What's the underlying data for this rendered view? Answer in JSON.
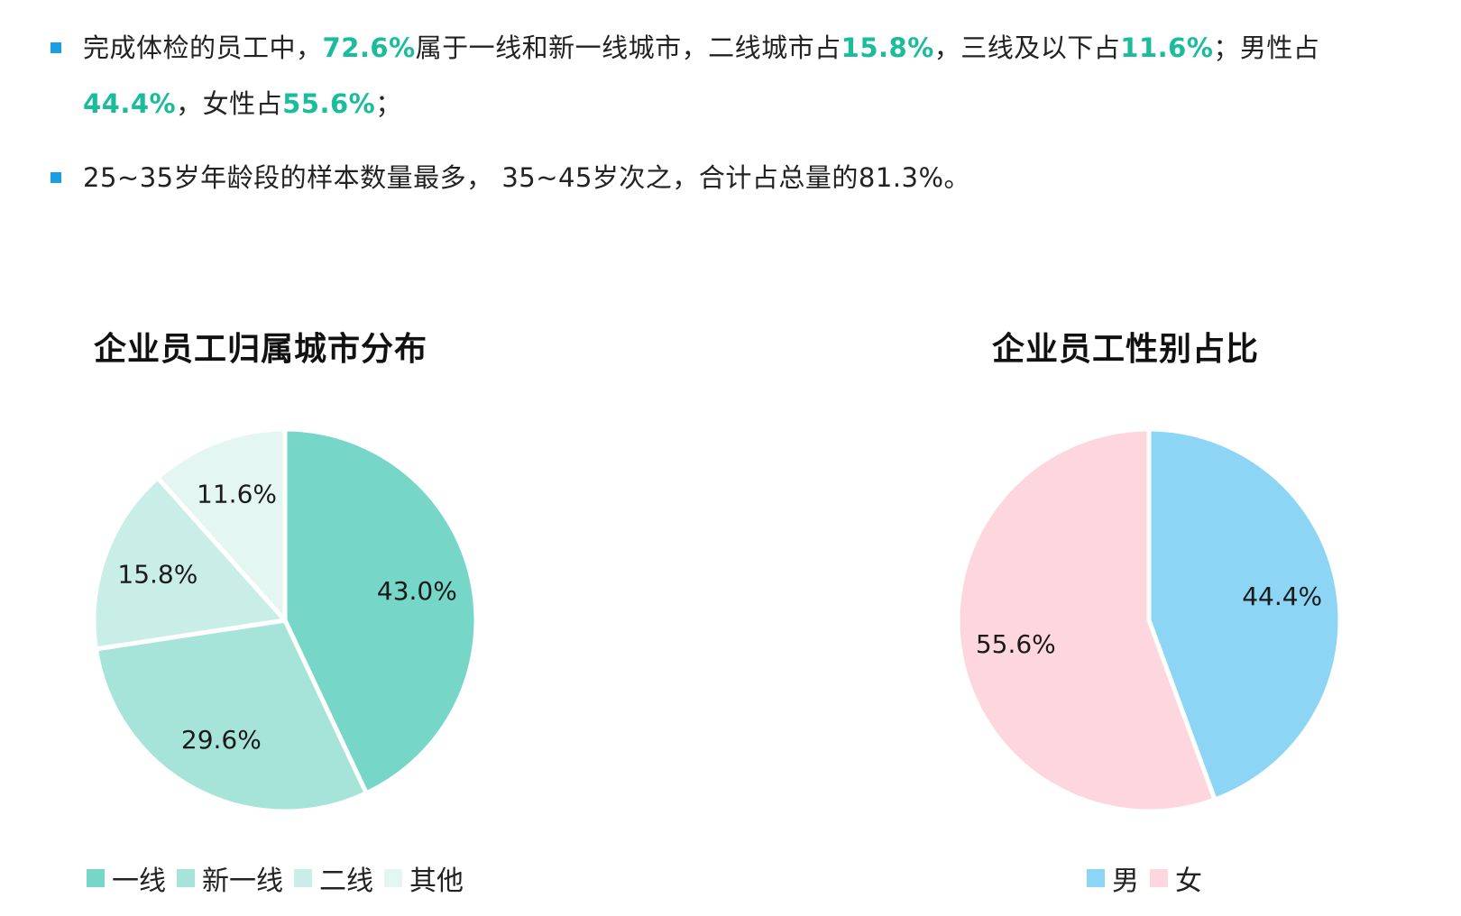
{
  "summary": {
    "bullet1": {
      "t1": "完成体检的员工中，",
      "v1": "72.6%",
      "t2": "属于一线和新一线城市，二线城市占",
      "v2": "15.8%",
      "t3": "，三线及以下占",
      "v3": "11.6%",
      "t4": "；",
      "t5": "男性占",
      "v4": "44.4%",
      "t6": "，女性占",
      "v5": "55.6%",
      "t7": "；"
    },
    "bullet2": {
      "text": "25~35岁年龄段的样本数量最多， 35~45岁次之，合计占总量的81.3%。"
    },
    "marker_color": "#1a9ee0",
    "highlight_color": "#1abc9c"
  },
  "chart_data": [
    {
      "type": "pie",
      "title": "企业员工归属城市分布",
      "categories": [
        "一线",
        "新一线",
        "二线",
        "其他"
      ],
      "values": [
        43.0,
        29.6,
        15.8,
        11.6
      ],
      "labels": [
        "43.0%",
        "29.6%",
        "15.8%",
        "11.6%"
      ],
      "colors": [
        "#76d6c8",
        "#a6e4da",
        "#c9eee8",
        "#e4f6f2"
      ],
      "start_angle_deg": 0,
      "direction": "clockwise",
      "legend_position": "bottom"
    },
    {
      "type": "pie",
      "title": "企业员工性别占比",
      "categories": [
        "男",
        "女"
      ],
      "values": [
        44.4,
        55.6
      ],
      "labels": [
        "44.4%",
        "55.6%"
      ],
      "colors": [
        "#8dd5f4",
        "#fdd7dd"
      ],
      "start_angle_deg": 0,
      "direction": "clockwise",
      "legend_position": "bottom"
    }
  ]
}
